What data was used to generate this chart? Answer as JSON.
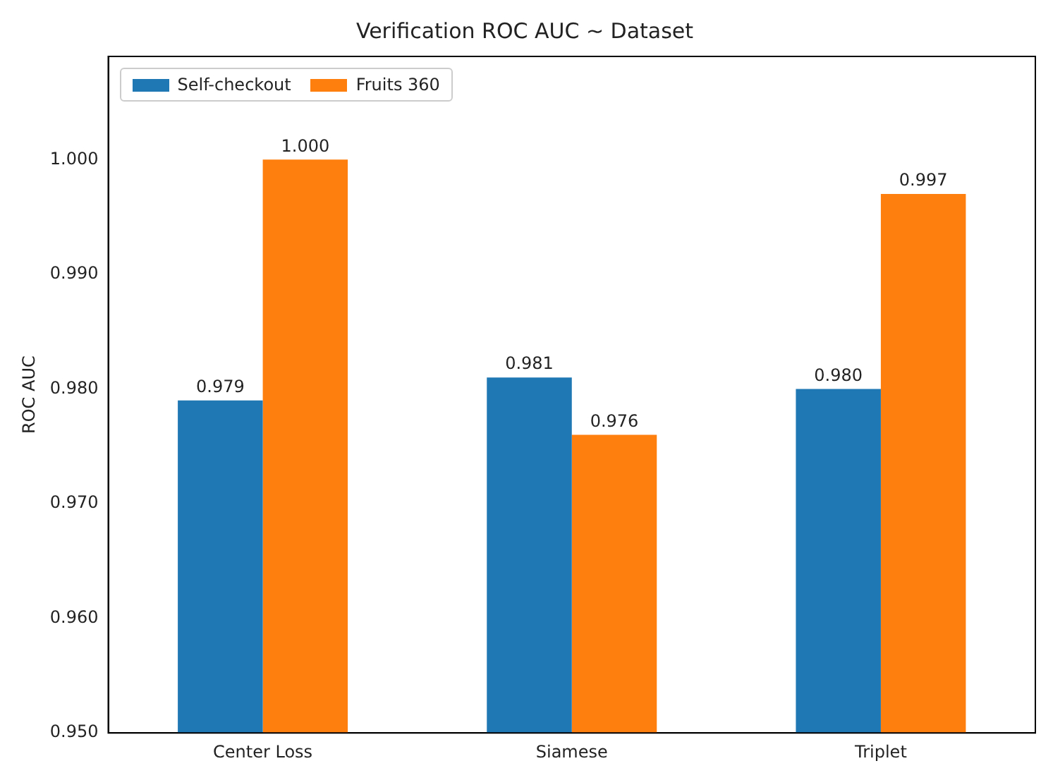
{
  "chart_data": {
    "type": "bar",
    "title": "Verification ROC AUC ~ Dataset",
    "ylabel": "ROC AUC",
    "categories": [
      "Center Loss",
      "Siamese",
      "Triplet"
    ],
    "series": [
      {
        "name": "Self-checkout",
        "color": "#1f77b4",
        "values": [
          0.979,
          0.981,
          0.98
        ],
        "value_labels": [
          "0.979",
          "0.981",
          "0.980"
        ]
      },
      {
        "name": "Fruits 360",
        "color": "#ff7f0e",
        "values": [
          1.0,
          0.976,
          0.997
        ],
        "value_labels": [
          "1.000",
          "0.976",
          "0.997"
        ]
      }
    ],
    "ylim": [
      0.95,
      1.009
    ],
    "yticks": [
      {
        "value": 0.95,
        "label": "0.950"
      },
      {
        "value": 0.96,
        "label": "0.960"
      },
      {
        "value": 0.97,
        "label": "0.970"
      },
      {
        "value": 0.98,
        "label": "0.980"
      },
      {
        "value": 0.99,
        "label": "0.990"
      },
      {
        "value": 1.0,
        "label": "1.000"
      }
    ],
    "grid": false,
    "legend": "top left"
  }
}
